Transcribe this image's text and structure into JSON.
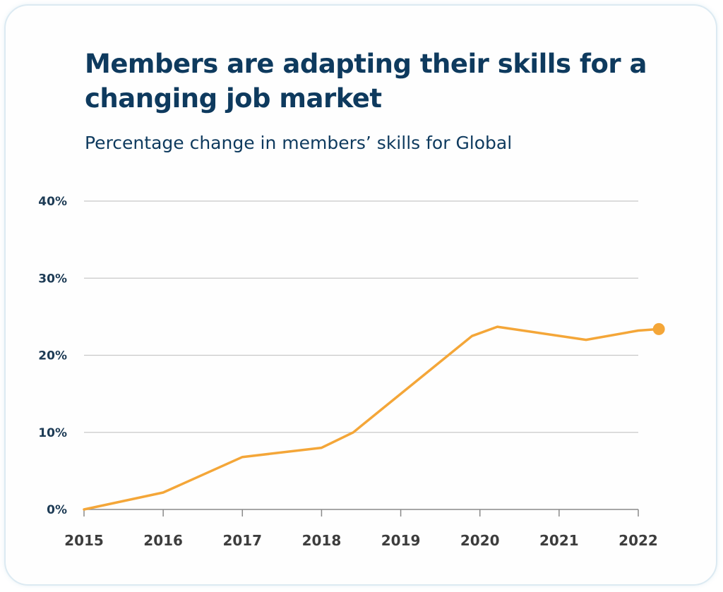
{
  "title": "Members are adapting their skills for a changing job market",
  "subtitle": "Percentage change in members’ skills for Global",
  "colors": {
    "line": "#f4a638",
    "title": "#0e3a5e",
    "grid": "#c8c8c8",
    "axis": "#8a8a8a"
  },
  "chart_data": {
    "type": "line",
    "title": "Members are adapting their skills for a changing job market",
    "subtitle": "Percentage change in members’ skills for Global",
    "xlabel": "",
    "ylabel": "",
    "x_ticks": [
      "2015",
      "2016",
      "2017",
      "2018",
      "2019",
      "2020",
      "2021",
      "2022"
    ],
    "y_ticks": [
      "0%",
      "10%",
      "20%",
      "30%",
      "40%"
    ],
    "xlim": [
      2015,
      2022.26
    ],
    "ylim": [
      0,
      40
    ],
    "grid": true,
    "legend": "none",
    "series": [
      {
        "x": [
          2015,
          2016,
          2017,
          2018,
          2018.4,
          2019,
          2019.9,
          2020.22,
          2021.34,
          2022,
          2022.26
        ],
        "y": [
          0,
          2.2,
          6.8,
          8.0,
          10.0,
          15.0,
          22.5,
          23.7,
          22.0,
          23.2,
          23.4
        ]
      }
    ],
    "end_marker": true
  }
}
